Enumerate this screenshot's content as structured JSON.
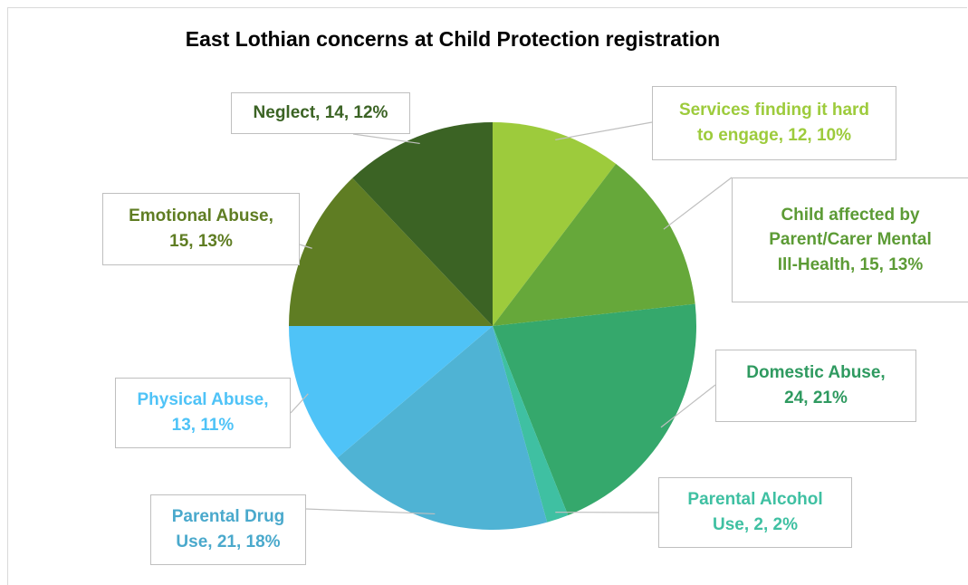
{
  "chart_data": {
    "type": "pie",
    "title": "East Lothian concerns at Child Protection registration",
    "slices": [
      {
        "category": "Services finding it hard to engage",
        "value": 12,
        "percent": "10%",
        "color": "#9dcb3c",
        "label_lines": [
          "Services finding it hard",
          "to engage, 12, 10%"
        ]
      },
      {
        "category": "Child affected by Parent/Carer Mental Ill-Health",
        "value": 15,
        "percent": "13%",
        "color": "#66a83a",
        "label_lines": [
          "Child affected by",
          "Parent/Carer Mental",
          "Ill-Health, 15, 13%"
        ]
      },
      {
        "category": "Domestic Abuse",
        "value": 24,
        "percent": "21%",
        "color": "#35a86c",
        "label_lines": [
          "Domestic Abuse,",
          "24, 21%"
        ]
      },
      {
        "category": "Parental Alcohol Use",
        "value": 2,
        "percent": "2%",
        "color": "#3fc0a2",
        "label_lines": [
          "Parental Alcohol",
          "Use, 2, 2%"
        ]
      },
      {
        "category": "Parental Drug Use",
        "value": 21,
        "percent": "18%",
        "color": "#4fb3d4",
        "label_lines": [
          "Parental Drug",
          "Use, 21, 18%"
        ]
      },
      {
        "category": "Physical Abuse",
        "value": 13,
        "percent": "11%",
        "color": "#4fc3f7",
        "label_lines": [
          "Physical Abuse,",
          "13, 11%"
        ]
      },
      {
        "category": "Emotional Abuse",
        "value": 15,
        "percent": "13%",
        "color": "#5f7d23",
        "label_lines": [
          "Emotional Abuse,",
          "15, 13%"
        ]
      },
      {
        "category": "Neglect",
        "value": 14,
        "percent": "12%",
        "color": "#3b6324",
        "label_lines": [
          "Neglect, 14, 12%"
        ]
      }
    ],
    "label_text_colors": [
      "#9dcb3c",
      "#5c9b35",
      "#2f9a60",
      "#3fc0a2",
      "#4aa9cc",
      "#4fc3f7",
      "#5f7d23",
      "#3b6324"
    ],
    "legend": "none"
  }
}
